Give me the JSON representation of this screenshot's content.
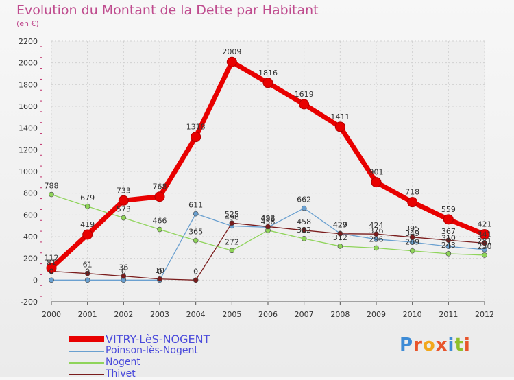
{
  "title": "Evolution du Montant de la Dette par Habitant",
  "subtitle": "(en €)",
  "logo": {
    "text": "Proxiti",
    "colors": [
      "#3d8bd6",
      "#e8542b",
      "#f2a71b",
      "#e8542b",
      "#3d8bd6",
      "#8fbf2b",
      "#e8542b"
    ]
  },
  "chart_data": {
    "type": "line",
    "x": [
      2000,
      2001,
      2002,
      2003,
      2004,
      2005,
      2006,
      2007,
      2008,
      2009,
      2010,
      2011,
      2012
    ],
    "ylim": [
      -200,
      2200
    ],
    "yticks": [
      -200,
      0,
      200,
      400,
      600,
      800,
      1000,
      1200,
      1400,
      1600,
      1800,
      2000,
      2200
    ],
    "grid": true,
    "legend": "bottom-left",
    "series": [
      {
        "name": "VITRY-LèS-NOGENT",
        "color": "#e80000",
        "width": 7,
        "marker": 7,
        "values": [
          112,
          419,
          733,
          768,
          1318,
          2009,
          1816,
          1619,
          1411,
          901,
          718,
          559,
          421
        ],
        "labels": [
          "112",
          "419",
          "733",
          "768",
          "1318",
          "2009",
          "1816",
          "1619",
          "1411",
          "901",
          "718",
          "559",
          "421"
        ]
      },
      {
        "name": "Poinson-lès-Nogent",
        "color": "#6aa0d0",
        "width": 1.3,
        "marker": 3.5,
        "values": [
          0,
          0,
          0,
          0,
          611,
          498,
          486,
          662,
          429,
          376,
          349,
          310,
          281
        ],
        "labels": [
          "0",
          "0",
          "0",
          "0",
          "611",
          "498",
          "486",
          "662",
          "429",
          "376",
          "349",
          "310",
          "281"
        ]
      },
      {
        "name": "Nogent",
        "color": "#8fd45a",
        "width": 1.3,
        "marker": 3.5,
        "values": [
          788,
          679,
          573,
          466,
          365,
          272,
          458,
          382,
          312,
          296,
          269,
          243,
          230
        ],
        "labels": [
          "788",
          "679",
          "573",
          "466",
          "365",
          "272",
          "458",
          "382",
          "312",
          "296",
          "269",
          "243",
          "230"
        ]
      },
      {
        "name": "Thivet",
        "color": "#7a1c1c",
        "width": 1.3,
        "marker": 3.5,
        "values": [
          81,
          61,
          36,
          10,
          0,
          525,
          492,
          458,
          427,
          424,
          395,
          367,
          341
        ],
        "labels": [
          "81",
          "61",
          "36",
          "10",
          "0",
          "525",
          "492",
          "458",
          "427",
          "424",
          "395",
          "367",
          "341"
        ]
      }
    ]
  }
}
